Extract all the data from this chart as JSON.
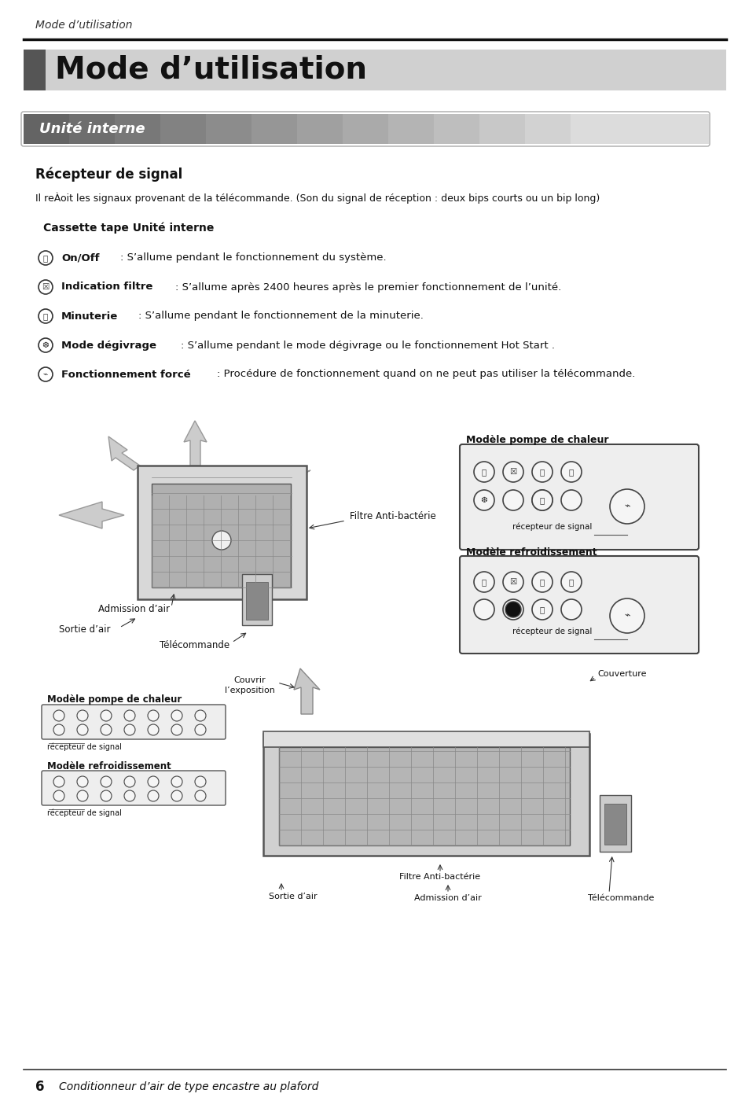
{
  "page_header": "Mode d’utilisation",
  "main_title": "Mode d’utilisation",
  "section_title": "Unité interne",
  "subsection_title": "Récepteur de signal",
  "subsection_body": "Il reÀoit les signaux provenant de la télécommande. (Son du signal de réception : deux bips courts ou un bip long)",
  "cassette_title": "Cassette tape Unité interne",
  "items": [
    {
      "label": "On/Off",
      "desc": ": S’allume pendant le fonctionnement du système."
    },
    {
      "label": "Indication filtre",
      "desc": ": S’allume après 2400 heures après le premier fonctionnement de l’unité."
    },
    {
      "label": "Minuterie",
      "desc": ": S’allume pendant le fonctionnement de la minuterie."
    },
    {
      "label": "Mode dégivrage",
      "desc": ": S’allume pendant le mode dégivrage ou le fonctionnement Hot Start ."
    },
    {
      "label": "Fonctionnement forcé",
      "desc": ": Procédure de fonctionnement quand on ne peut pas utiliser la télécommande."
    }
  ],
  "d1_filtre": "Filtre Anti-bactérie",
  "d1_admission": "Admission d’air",
  "d1_sortie": "Sortie d’air",
  "d1_telecommande": "Télécommande",
  "d1_modele_pompe": "Modèle pompe de chaleur",
  "d1_modele_froid": "Modèle refroidissement",
  "d1_recepteur1": "récepteur de signal",
  "d1_recepteur2": "récepteur de signal",
  "d2_modele_pompe": "Modèle pompe de chaleur",
  "d2_modele_froid": "Modèle refroidissement",
  "d2_recepteur1": "récepteur de signal",
  "d2_recepteur2": "récepteur de signal",
  "d2_couvrir": "Couvrir\nl’exposition",
  "d2_couverture": "Couverture",
  "d2_filtre": "Filtre Anti-bactérie",
  "d2_sortie": "Sortie d’air",
  "d2_admission": "Admission d’air",
  "d2_telecommande": "Télécommande",
  "footer_number": "6",
  "footer_text": "Conditionneur d’air de type encastre au plaford",
  "bg_color": "#ffffff"
}
